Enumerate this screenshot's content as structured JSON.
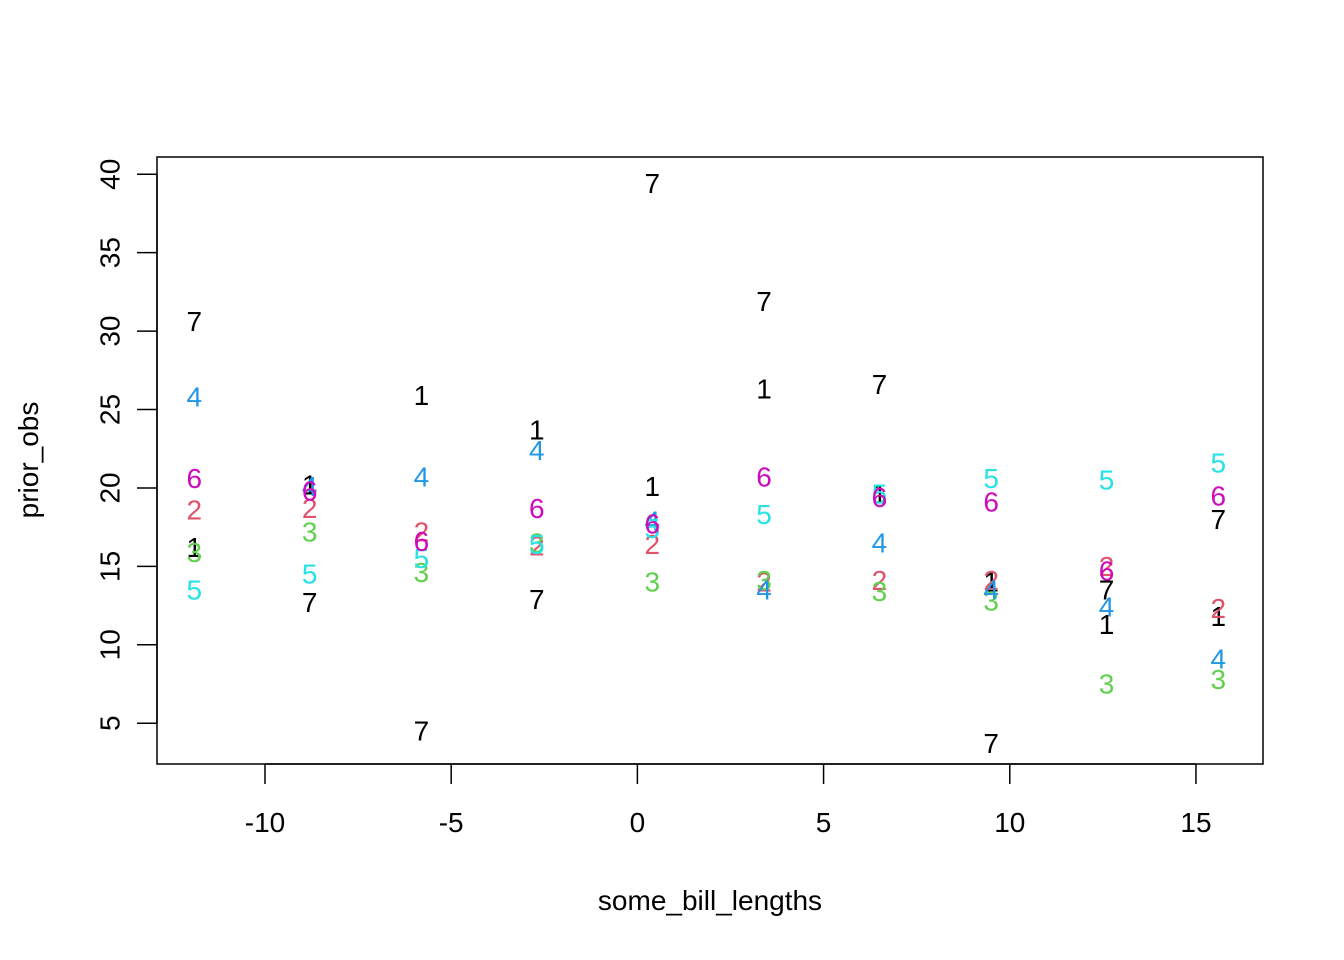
{
  "chart_data": {
    "type": "scatter",
    "title": "",
    "xlabel": "some_bill_lengths",
    "ylabel": "prior_obs",
    "xlim": [
      -12.9,
      16.8
    ],
    "ylim": [
      2.4,
      41.1
    ],
    "x_ticks": [
      -10,
      -5,
      0,
      5,
      10,
      15
    ],
    "y_ticks": [
      5,
      10,
      15,
      20,
      25,
      30,
      35,
      40
    ],
    "x_tick_labels": [
      "-10",
      "-5",
      "0",
      "5",
      "10",
      "15"
    ],
    "y_tick_labels": [
      "5",
      "10",
      "15",
      "20",
      "25",
      "30",
      "35",
      "40"
    ],
    "grid": false,
    "legend": "none",
    "marker": "series number drawn as text glyph",
    "x": [
      -11.9,
      -8.8,
      -5.8,
      -2.7,
      0.4,
      3.4,
      6.5,
      9.5,
      12.6,
      15.6
    ],
    "series": [
      {
        "label": "1",
        "color": "#000000",
        "values": [
          16.2,
          20.2,
          25.9,
          23.7,
          20.1,
          26.3,
          19.6,
          14.0,
          11.3,
          11.8
        ]
      },
      {
        "label": "2",
        "color": "#DF536B",
        "values": [
          18.6,
          18.7,
          17.2,
          16.3,
          16.4,
          14.0,
          14.1,
          14.1,
          15.0,
          12.3
        ]
      },
      {
        "label": "3",
        "color": "#61D04F",
        "values": [
          15.9,
          17.2,
          14.6,
          16.5,
          14.0,
          14.1,
          13.4,
          12.8,
          7.5,
          7.8
        ]
      },
      {
        "label": "4",
        "color": "#2297E6",
        "values": [
          25.8,
          20.1,
          20.7,
          22.4,
          17.9,
          13.5,
          16.5,
          13.5,
          12.4,
          9.1
        ]
      },
      {
        "label": "5",
        "color": "#28E2E5",
        "values": [
          13.5,
          14.5,
          15.5,
          16.4,
          17.4,
          18.3,
          19.6,
          20.6,
          20.5,
          21.6
        ]
      },
      {
        "label": "6",
        "color": "#CD0BBC",
        "values": [
          20.6,
          19.8,
          16.6,
          18.7,
          17.7,
          20.7,
          19.4,
          19.1,
          14.7,
          19.5
        ]
      },
      {
        "label": "7",
        "color": "#000000",
        "values": [
          30.6,
          12.7,
          4.5,
          12.9,
          39.4,
          31.9,
          26.6,
          3.7,
          13.5,
          18.0
        ]
      }
    ]
  }
}
